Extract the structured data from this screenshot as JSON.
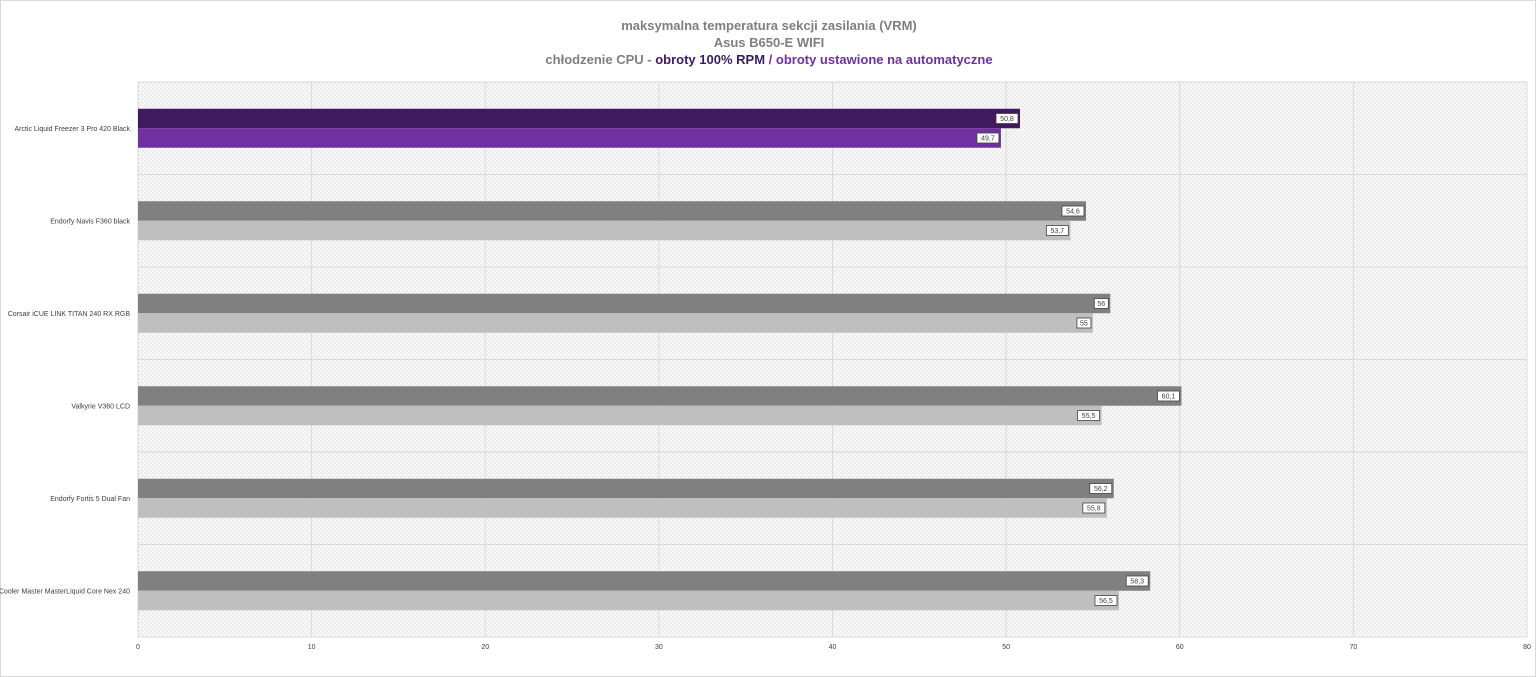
{
  "chart_data": {
    "type": "bar",
    "orientation": "horizontal",
    "title": {
      "line1": "maksymalna temperatura sekcji zasilania (VRM)",
      "line2": "Asus B650-E WIFI",
      "line3_prefix": "chłodzenie CPU - ",
      "line3_series1": "obroty 100% RPM",
      "line3_sep": " / ",
      "line3_series2": "obroty ustawione na automatyczne"
    },
    "categories": [
      "Arctic Liquid Freezer 3 Pro 420 Black",
      "Endorfy Navis F360 black",
      "Corsair iCUE LINK TITAN 240 RX RGB",
      "Valkyrie V360 LCD",
      "Endorfy Fortis 5 Dual Fan",
      "Cooler Master MasterLiquid Core Nex 240"
    ],
    "series": [
      {
        "values": [
          50.8,
          54.6,
          56,
          60.1,
          56.2,
          58.3
        ],
        "labels": [
          "50,8",
          "54,6",
          "56",
          "60,1",
          "56,2",
          "58,3"
        ]
      },
      {
        "values": [
          49.7,
          53.7,
          55,
          55.5,
          55.8,
          56.5
        ],
        "labels": [
          "49,7",
          "53,7",
          "55",
          "55,5",
          "55,8",
          "56,5"
        ]
      }
    ],
    "xlim": [
      0,
      80
    ],
    "xticks": [
      0,
      10,
      20,
      30,
      40,
      50,
      60,
      70,
      80
    ],
    "grid": true,
    "legend": "none",
    "colors": {
      "highlight_series1": "#3f1a5e",
      "highlight_series2": "#7030a0",
      "other_series1": "#808080",
      "other_series2": "#bfbfbf",
      "title_gray": "#7f7f7f"
    },
    "highlight_index": 0
  }
}
